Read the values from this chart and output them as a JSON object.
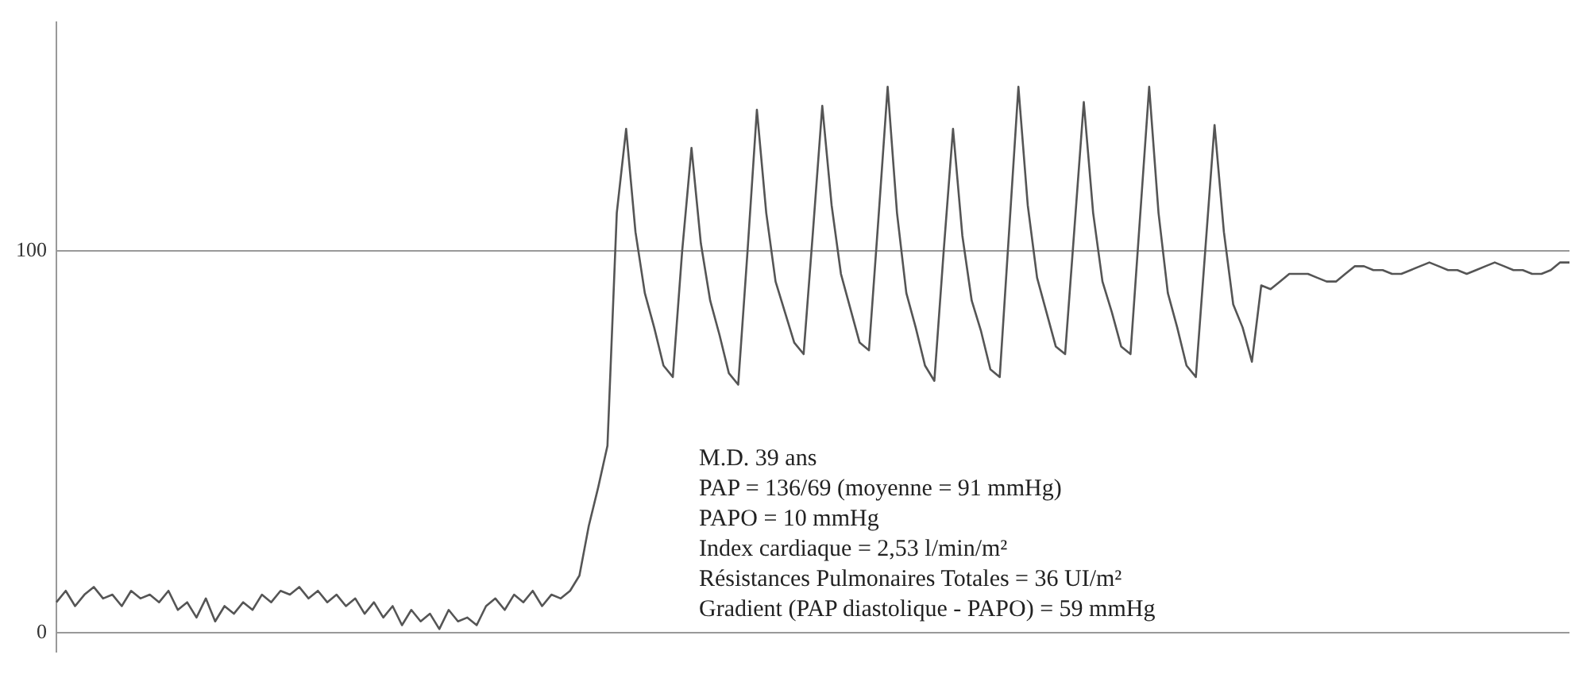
{
  "chart_data": {
    "type": "line",
    "categories": [
      null,
      null,
      null,
      null,
      null,
      null,
      null,
      null,
      null,
      null,
      null,
      null,
      null,
      null,
      null,
      null,
      null,
      null,
      null,
      null,
      null,
      null,
      null,
      null,
      null,
      null,
      null,
      null,
      null,
      null,
      null,
      null,
      null,
      null,
      null,
      null,
      null,
      null,
      null,
      null,
      null,
      null,
      null,
      null,
      null,
      null,
      null,
      null,
      null,
      null,
      null,
      null,
      null,
      null,
      null,
      null,
      null,
      null,
      null,
      null,
      null,
      null,
      null,
      null,
      null,
      null,
      null,
      null,
      null,
      null,
      null,
      null,
      null,
      null,
      null,
      null,
      null,
      null,
      null,
      null,
      null,
      null,
      null,
      null,
      null,
      null,
      null,
      null,
      null,
      null,
      null,
      null,
      null,
      null,
      null,
      null,
      null,
      null,
      null,
      null,
      null,
      null,
      null,
      null,
      null,
      null,
      null,
      null,
      null,
      null,
      null,
      null,
      null,
      null,
      null,
      null,
      null,
      null,
      null,
      null,
      null,
      null,
      null,
      null,
      null,
      null,
      null,
      null,
      null,
      null,
      null,
      null,
      null,
      null,
      null,
      null,
      null,
      null,
      null,
      null,
      null,
      null,
      null,
      null,
      null,
      null,
      null,
      null,
      null,
      null,
      null,
      null,
      null,
      null,
      null,
      null,
      null,
      null,
      null,
      null,
      null,
      null,
      null
    ],
    "series": [
      {
        "color": "#555555",
        "values": [
          8,
          11,
          7,
          10,
          12,
          9,
          10,
          7,
          11,
          9,
          10,
          8,
          11,
          6,
          8,
          4,
          9,
          3,
          7,
          5,
          8,
          6,
          10,
          8,
          11,
          10,
          12,
          9,
          11,
          8,
          10,
          7,
          9,
          5,
          8,
          4,
          7,
          2,
          6,
          3,
          5,
          1,
          6,
          3,
          4,
          2,
          7,
          9,
          6,
          10,
          8,
          11,
          7,
          10,
          9,
          11,
          15,
          28,
          38,
          49,
          110,
          132,
          105,
          89,
          80,
          70,
          67,
          100,
          127,
          102,
          87,
          78,
          68,
          65,
          100,
          137,
          110,
          92,
          84,
          76,
          73,
          105,
          138,
          112,
          94,
          85,
          76,
          74,
          108,
          143,
          110,
          89,
          80,
          70,
          66,
          100,
          132,
          104,
          87,
          79,
          69,
          67,
          105,
          143,
          112,
          93,
          84,
          75,
          73,
          106,
          139,
          110,
          92,
          84,
          75,
          73,
          108,
          143,
          110,
          89,
          80,
          70,
          67,
          100,
          133,
          105,
          86,
          80,
          71,
          91,
          90,
          92,
          94,
          94,
          94,
          93,
          92,
          92,
          94,
          96,
          96,
          95,
          95,
          94,
          94,
          95,
          96,
          97,
          96,
          95,
          95,
          94,
          95,
          96,
          97,
          96,
          95,
          95,
          94,
          94,
          95,
          97,
          97
        ]
      }
    ],
    "ylim": [
      -5,
      160
    ],
    "yticks": [
      0,
      100
    ],
    "grid": "y",
    "annotations": [
      "M.D. 39 ans",
      "PAP = 136/69 (moyenne = 91 mmHg)",
      "PAPO = 10 mmHg",
      "Index cardiaque = 2,53 l/min/m²",
      "Résistances Pulmonaires Totales = 36 UI/m²",
      "Gradient (PAP diastolique - PAPO) = 59 mmHg"
    ]
  }
}
